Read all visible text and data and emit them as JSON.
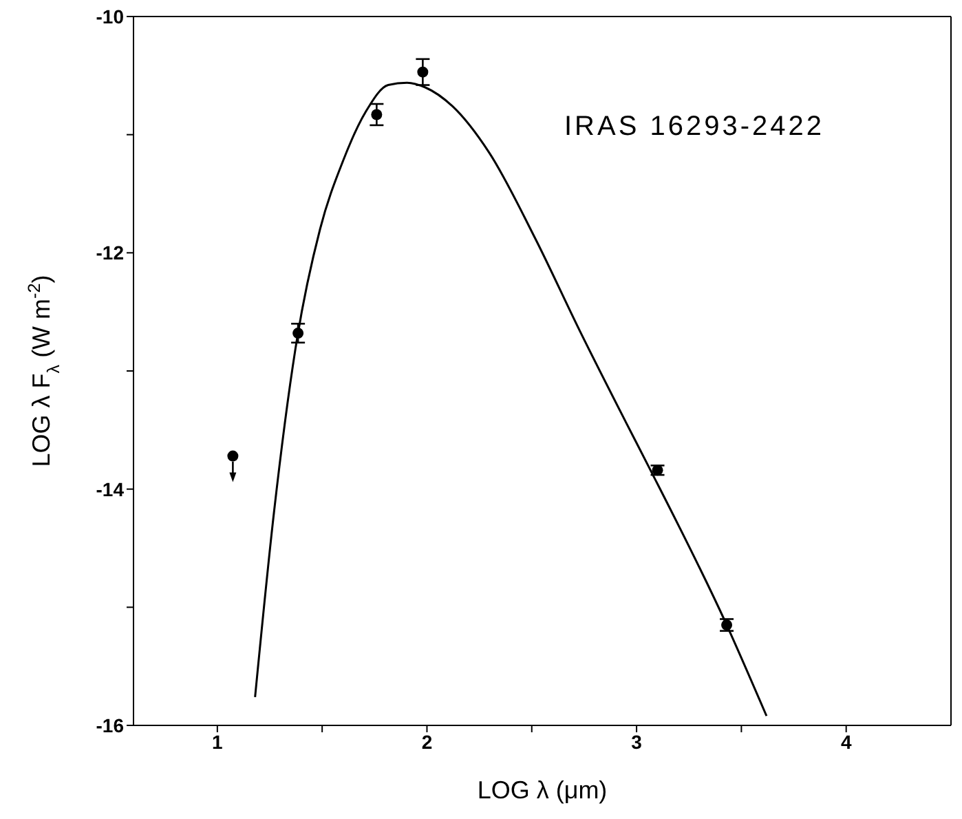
{
  "chart_data": {
    "type": "scatter",
    "xlabel": "LOG  λ (μm)",
    "ylabel": "LOG  λ F$_{λ}$  (W m$^{-2}$)",
    "annotations": [
      "IRAS 16293-2422"
    ],
    "xlim": [
      0.6,
      4.5
    ],
    "xticks": [
      1,
      {
        "value": 1.5,
        "label": null
      },
      2,
      {
        "value": 2.5,
        "label": null
      },
      3,
      {
        "value": 3.5,
        "label": null
      },
      4
    ],
    "ylim": [
      -16,
      -10
    ],
    "yticks": [
      -10,
      {
        "value": -11,
        "label": null
      },
      -12,
      {
        "value": -13,
        "label": null
      },
      -14,
      {
        "value": -15,
        "label": null
      },
      -16
    ],
    "series": [
      {
        "color": "#000000",
        "marker": "circle",
        "x": [
          1.074,
          1.385,
          1.76,
          1.98,
          3.1,
          3.43
        ],
        "values": [
          -13.72,
          -12.68,
          -10.83,
          -10.47,
          -13.84,
          -15.15
        ],
        "errors": [
          null,
          0.08,
          0.09,
          0.11,
          0.04,
          0.05
        ]
      },
      {
        "type": "line",
        "color": "#000000",
        "marker": "none",
        "line_style": "solid",
        "x": [
          1.18,
          1.27,
          1.38,
          1.49,
          1.6,
          1.71,
          1.815,
          1.905,
          1.992,
          2.122,
          2.296,
          2.517,
          2.729,
          2.948,
          3.055,
          3.43,
          3.62
        ],
        "values": [
          -15.76,
          -14.2,
          -12.73,
          -11.8,
          -11.22,
          -10.8,
          -10.58,
          -10.56,
          -10.6,
          -10.76,
          -11.15,
          -11.88,
          -12.66,
          -13.43,
          -13.8,
          -15.15,
          -15.92
        ]
      }
    ]
  }
}
